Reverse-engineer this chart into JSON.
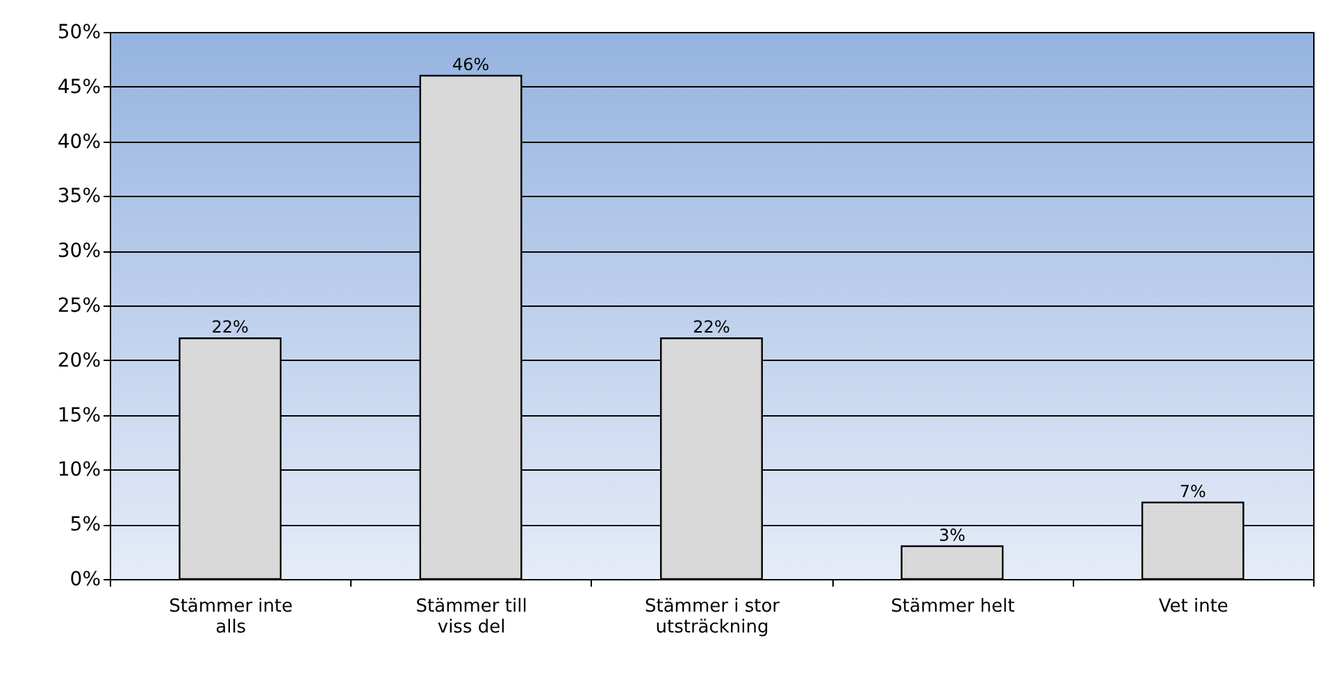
{
  "chart_data": {
    "type": "bar",
    "categories": [
      "Stämmer inte alls",
      "Stämmer till viss del",
      "Stämmer i stor utsträckning",
      "Stämmer helt",
      "Vet inte"
    ],
    "values": [
      22,
      46,
      22,
      3,
      7
    ],
    "value_labels": [
      "22%",
      "46%",
      "22%",
      "3%",
      "7%"
    ],
    "color": "#d9d9d9",
    "ylim": [
      0,
      50
    ],
    "yticks": [
      {
        "value": 0,
        "label": "0%"
      },
      {
        "value": 5,
        "label": "5%"
      },
      {
        "value": 10,
        "label": "10%"
      },
      {
        "value": 15,
        "label": "15%"
      },
      {
        "value": 20,
        "label": "20%"
      },
      {
        "value": 25,
        "label": "25%"
      },
      {
        "value": 30,
        "label": "30%"
      },
      {
        "value": 35,
        "label": "35%"
      },
      {
        "value": 40,
        "label": "40%"
      },
      {
        "value": 45,
        "label": "45%"
      },
      {
        "value": 50,
        "label": "50%"
      }
    ],
    "grid": "y"
  }
}
